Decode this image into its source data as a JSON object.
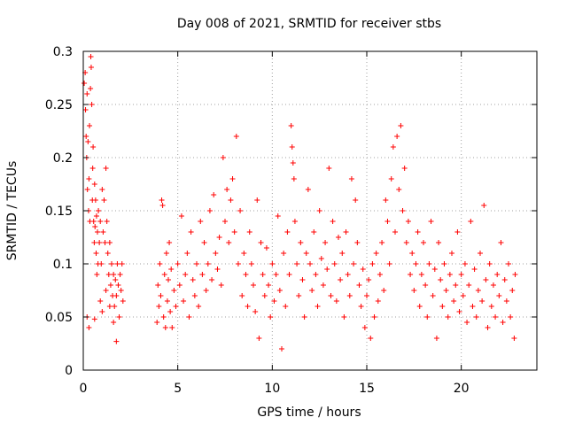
{
  "chart_data": {
    "type": "scatter",
    "title": "Day 008 of 2021, SRMTID for receiver stbs",
    "xlabel": "GPS time / hours",
    "ylabel": "SRMTID / TECUs",
    "xlim": [
      0,
      24
    ],
    "ylim": [
      0,
      0.3
    ],
    "grid": true,
    "marker": "+",
    "color": "#ff0000",
    "x_ticks": [
      {
        "value": 0,
        "label": "0"
      },
      {
        "value": 5,
        "label": "5"
      },
      {
        "value": 10,
        "label": "10"
      },
      {
        "value": 15,
        "label": "15"
      },
      {
        "value": 20,
        "label": "20"
      }
    ],
    "y_ticks": [
      {
        "value": 0,
        "label": "0"
      },
      {
        "value": 0.05,
        "label": "0.05"
      },
      {
        "value": 0.1,
        "label": "0.1"
      },
      {
        "value": 0.15,
        "label": "0.15"
      },
      {
        "value": 0.2,
        "label": "0.2"
      },
      {
        "value": 0.25,
        "label": "0.25"
      },
      {
        "value": 0.3,
        "label": "0.3"
      }
    ],
    "series": [
      {
        "name": "SRMTID",
        "points": [
          [
            0.05,
            0.27
          ],
          [
            0.1,
            0.28
          ],
          [
            0.12,
            0.245
          ],
          [
            0.15,
            0.22
          ],
          [
            0.18,
            0.2
          ],
          [
            0.2,
            0.26
          ],
          [
            0.22,
            0.17
          ],
          [
            0.25,
            0.215
          ],
          [
            0.28,
            0.15
          ],
          [
            0.3,
            0.18
          ],
          [
            0.33,
            0.23
          ],
          [
            0.35,
            0.14
          ],
          [
            0.38,
            0.265
          ],
          [
            0.4,
            0.295
          ],
          [
            0.42,
            0.285
          ],
          [
            0.45,
            0.25
          ],
          [
            0.48,
            0.16
          ],
          [
            0.5,
            0.19
          ],
          [
            0.52,
            0.21
          ],
          [
            0.55,
            0.14
          ],
          [
            0.58,
            0.12
          ],
          [
            0.6,
            0.175
          ],
          [
            0.62,
            0.135
          ],
          [
            0.65,
            0.16
          ],
          [
            0.68,
            0.11
          ],
          [
            0.7,
            0.145
          ],
          [
            0.72,
            0.09
          ],
          [
            0.75,
            0.13
          ],
          [
            0.78,
            0.1
          ],
          [
            0.8,
            0.15
          ],
          [
            0.85,
            0.12
          ],
          [
            0.9,
            0.14
          ],
          [
            0.95,
            0.1
          ],
          [
            1.0,
            0.17
          ],
          [
            1.05,
            0.13
          ],
          [
            1.1,
            0.16
          ],
          [
            1.15,
            0.12
          ],
          [
            1.2,
            0.19
          ],
          [
            1.25,
            0.14
          ],
          [
            1.3,
            0.11
          ],
          [
            1.35,
            0.09
          ],
          [
            1.4,
            0.12
          ],
          [
            1.45,
            0.08
          ],
          [
            1.5,
            0.1
          ],
          [
            1.55,
            0.07
          ],
          [
            1.6,
            0.09
          ],
          [
            1.65,
            0.06
          ],
          [
            1.7,
            0.085
          ],
          [
            1.75,
            0.07
          ],
          [
            1.8,
            0.1
          ],
          [
            1.85,
            0.08
          ],
          [
            1.9,
            0.05
          ],
          [
            1.95,
            0.09
          ],
          [
            2.0,
            0.075
          ],
          [
            2.05,
            0.1
          ],
          [
            2.1,
            0.065
          ],
          [
            1.6,
            0.045
          ],
          [
            1.75,
            0.027
          ],
          [
            0.2,
            0.05
          ],
          [
            0.3,
            0.04
          ],
          [
            0.6,
            0.048
          ],
          [
            1.0,
            0.055
          ],
          [
            0.9,
            0.065
          ],
          [
            1.4,
            0.06
          ],
          [
            1.2,
            0.075
          ],
          [
            3.9,
            0.045
          ],
          [
            3.95,
            0.08
          ],
          [
            4.0,
            0.06
          ],
          [
            4.05,
            0.1
          ],
          [
            4.1,
            0.07
          ],
          [
            4.15,
            0.16
          ],
          [
            4.2,
            0.155
          ],
          [
            4.25,
            0.05
          ],
          [
            4.3,
            0.09
          ],
          [
            4.35,
            0.04
          ],
          [
            4.4,
            0.11
          ],
          [
            4.45,
            0.065
          ],
          [
            4.5,
            0.085
          ],
          [
            4.55,
            0.12
          ],
          [
            4.6,
            0.055
          ],
          [
            4.65,
            0.095
          ],
          [
            4.7,
            0.04
          ],
          [
            4.8,
            0.075
          ],
          [
            4.9,
            0.06
          ],
          [
            5.0,
            0.1
          ],
          [
            5.1,
            0.08
          ],
          [
            5.2,
            0.145
          ],
          [
            5.3,
            0.065
          ],
          [
            5.4,
            0.09
          ],
          [
            5.5,
            0.11
          ],
          [
            5.6,
            0.05
          ],
          [
            5.7,
            0.13
          ],
          [
            5.8,
            0.085
          ],
          [
            5.9,
            0.07
          ],
          [
            6.0,
            0.1
          ],
          [
            6.1,
            0.06
          ],
          [
            6.2,
            0.14
          ],
          [
            6.3,
            0.09
          ],
          [
            6.4,
            0.12
          ],
          [
            6.5,
            0.075
          ],
          [
            6.6,
            0.1
          ],
          [
            6.7,
            0.15
          ],
          [
            6.8,
            0.085
          ],
          [
            6.9,
            0.165
          ],
          [
            7.0,
            0.11
          ],
          [
            7.1,
            0.095
          ],
          [
            7.2,
            0.125
          ],
          [
            7.3,
            0.08
          ],
          [
            7.4,
            0.2
          ],
          [
            7.5,
            0.14
          ],
          [
            7.6,
            0.17
          ],
          [
            7.7,
            0.12
          ],
          [
            7.8,
            0.16
          ],
          [
            7.9,
            0.18
          ],
          [
            8.0,
            0.13
          ],
          [
            8.1,
            0.22
          ],
          [
            8.2,
            0.1
          ],
          [
            8.3,
            0.15
          ],
          [
            8.4,
            0.07
          ],
          [
            8.5,
            0.11
          ],
          [
            8.6,
            0.09
          ],
          [
            8.7,
            0.06
          ],
          [
            8.8,
            0.13
          ],
          [
            8.9,
            0.1
          ],
          [
            9.0,
            0.08
          ],
          [
            9.1,
            0.055
          ],
          [
            9.2,
            0.16
          ],
          [
            9.3,
            0.03
          ],
          [
            9.4,
            0.12
          ],
          [
            9.5,
            0.09
          ],
          [
            9.6,
            0.07
          ],
          [
            9.7,
            0.115
          ],
          [
            9.8,
            0.08
          ],
          [
            9.9,
            0.05
          ],
          [
            10.0,
            0.1
          ],
          [
            10.1,
            0.065
          ],
          [
            10.2,
            0.09
          ],
          [
            10.3,
            0.145
          ],
          [
            10.4,
            0.075
          ],
          [
            10.5,
            0.02
          ],
          [
            10.6,
            0.11
          ],
          [
            10.7,
            0.06
          ],
          [
            10.8,
            0.13
          ],
          [
            10.9,
            0.09
          ],
          [
            11.0,
            0.23
          ],
          [
            11.05,
            0.21
          ],
          [
            11.1,
            0.195
          ],
          [
            11.15,
            0.18
          ],
          [
            11.2,
            0.14
          ],
          [
            11.3,
            0.1
          ],
          [
            11.4,
            0.07
          ],
          [
            11.5,
            0.12
          ],
          [
            11.6,
            0.085
          ],
          [
            11.7,
            0.05
          ],
          [
            11.8,
            0.11
          ],
          [
            11.9,
            0.17
          ],
          [
            12.0,
            0.1
          ],
          [
            12.1,
            0.075
          ],
          [
            12.2,
            0.13
          ],
          [
            12.3,
            0.09
          ],
          [
            12.4,
            0.06
          ],
          [
            12.5,
            0.15
          ],
          [
            12.6,
            0.105
          ],
          [
            12.7,
            0.08
          ],
          [
            12.8,
            0.12
          ],
          [
            12.9,
            0.095
          ],
          [
            13.0,
            0.19
          ],
          [
            13.1,
            0.07
          ],
          [
            13.2,
            0.14
          ],
          [
            13.3,
            0.1
          ],
          [
            13.4,
            0.065
          ],
          [
            13.5,
            0.125
          ],
          [
            13.6,
            0.085
          ],
          [
            13.7,
            0.11
          ],
          [
            13.8,
            0.05
          ],
          [
            13.9,
            0.13
          ],
          [
            14.0,
            0.09
          ],
          [
            14.1,
            0.07
          ],
          [
            14.2,
            0.18
          ],
          [
            14.3,
            0.1
          ],
          [
            14.4,
            0.16
          ],
          [
            14.5,
            0.12
          ],
          [
            14.6,
            0.08
          ],
          [
            14.7,
            0.06
          ],
          [
            14.8,
            0.095
          ],
          [
            14.9,
            0.04
          ],
          [
            15.0,
            0.07
          ],
          [
            15.1,
            0.085
          ],
          [
            15.2,
            0.03
          ],
          [
            15.3,
            0.1
          ],
          [
            15.4,
            0.05
          ],
          [
            15.5,
            0.11
          ],
          [
            15.6,
            0.065
          ],
          [
            15.7,
            0.09
          ],
          [
            15.8,
            0.12
          ],
          [
            15.9,
            0.075
          ],
          [
            16.0,
            0.16
          ],
          [
            16.1,
            0.14
          ],
          [
            16.2,
            0.1
          ],
          [
            16.3,
            0.18
          ],
          [
            16.4,
            0.21
          ],
          [
            16.5,
            0.13
          ],
          [
            16.6,
            0.22
          ],
          [
            16.7,
            0.17
          ],
          [
            16.8,
            0.23
          ],
          [
            16.9,
            0.15
          ],
          [
            17.0,
            0.19
          ],
          [
            17.1,
            0.12
          ],
          [
            17.2,
            0.14
          ],
          [
            17.3,
            0.09
          ],
          [
            17.4,
            0.11
          ],
          [
            17.5,
            0.075
          ],
          [
            17.6,
            0.1
          ],
          [
            17.7,
            0.13
          ],
          [
            17.8,
            0.06
          ],
          [
            17.9,
            0.09
          ],
          [
            18.0,
            0.12
          ],
          [
            18.1,
            0.08
          ],
          [
            18.2,
            0.05
          ],
          [
            18.3,
            0.1
          ],
          [
            18.4,
            0.14
          ],
          [
            18.5,
            0.07
          ],
          [
            18.6,
            0.095
          ],
          [
            18.7,
            0.03
          ],
          [
            18.8,
            0.12
          ],
          [
            18.9,
            0.085
          ],
          [
            19.0,
            0.06
          ],
          [
            19.1,
            0.1
          ],
          [
            19.2,
            0.075
          ],
          [
            19.3,
            0.05
          ],
          [
            19.4,
            0.09
          ],
          [
            19.5,
            0.11
          ],
          [
            19.6,
            0.065
          ],
          [
            19.7,
            0.08
          ],
          [
            19.8,
            0.13
          ],
          [
            19.9,
            0.055
          ],
          [
            20.0,
            0.09
          ],
          [
            20.1,
            0.07
          ],
          [
            20.2,
            0.1
          ],
          [
            20.3,
            0.045
          ],
          [
            20.4,
            0.08
          ],
          [
            20.5,
            0.14
          ],
          [
            20.6,
            0.06
          ],
          [
            20.7,
            0.095
          ],
          [
            20.8,
            0.05
          ],
          [
            20.9,
            0.075
          ],
          [
            21.0,
            0.11
          ],
          [
            21.1,
            0.065
          ],
          [
            21.2,
            0.155
          ],
          [
            21.3,
            0.085
          ],
          [
            21.4,
            0.04
          ],
          [
            21.5,
            0.1
          ],
          [
            21.6,
            0.06
          ],
          [
            21.7,
            0.08
          ],
          [
            21.8,
            0.05
          ],
          [
            21.9,
            0.09
          ],
          [
            22.0,
            0.07
          ],
          [
            22.1,
            0.12
          ],
          [
            22.2,
            0.045
          ],
          [
            22.3,
            0.085
          ],
          [
            22.4,
            0.065
          ],
          [
            22.5,
            0.1
          ],
          [
            22.6,
            0.05
          ],
          [
            22.7,
            0.075
          ],
          [
            22.8,
            0.03
          ],
          [
            22.85,
            0.09
          ]
        ]
      }
    ]
  }
}
